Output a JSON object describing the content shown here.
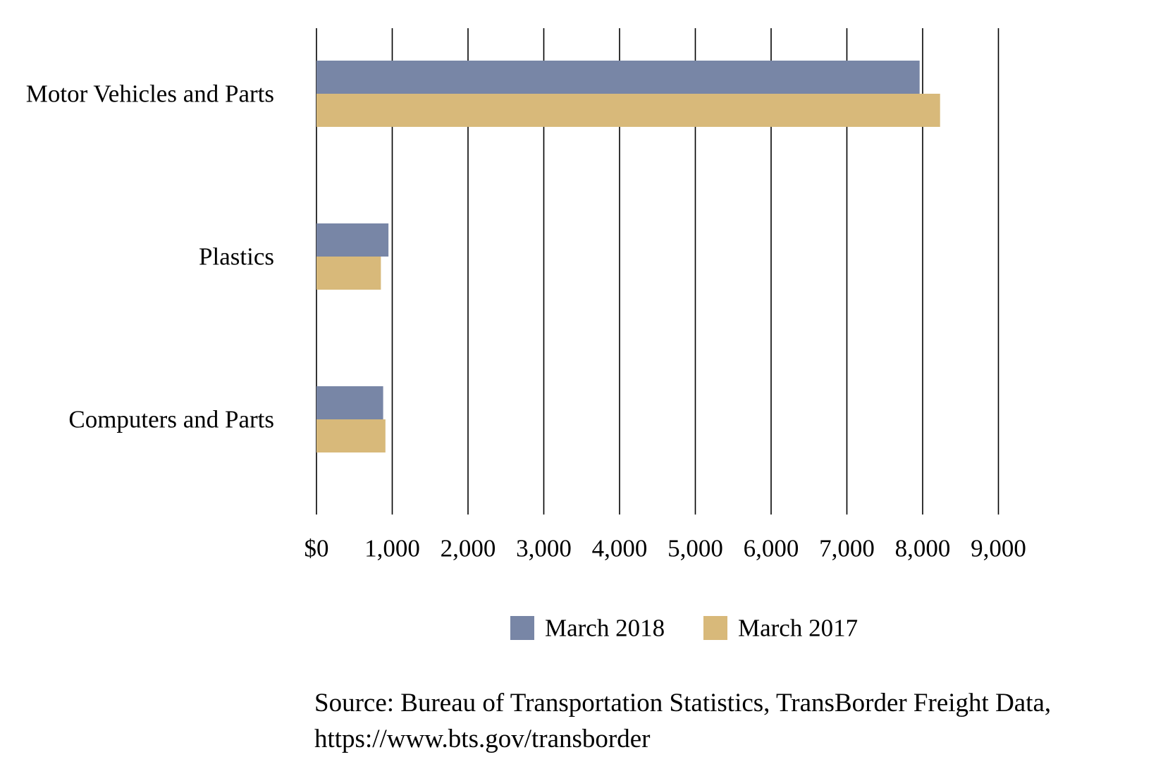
{
  "chart_data": {
    "type": "bar",
    "orientation": "horizontal",
    "categories": [
      "Motor Vehicles and Parts",
      "Plastics",
      "Computers and Parts"
    ],
    "series": [
      {
        "name": "March 2018",
        "color": "#7886a6",
        "values": [
          7960,
          950,
          880
        ]
      },
      {
        "name": "March 2017",
        "color": "#d8b97a",
        "values": [
          8230,
          850,
          910
        ]
      }
    ],
    "xlim": [
      0,
      9000
    ],
    "x_ticks": [
      0,
      1000,
      2000,
      3000,
      4000,
      5000,
      6000,
      7000,
      8000,
      9000
    ],
    "x_tick_labels": [
      "$0",
      "1,000",
      "2,000",
      "3,000",
      "4,000",
      "5,000",
      "6,000",
      "7,000",
      "8,000",
      "9,000"
    ],
    "grid": "vertical",
    "legend_position": "bottom"
  },
  "source": {
    "line1": "Source: Bureau of Transportation Statistics, TransBorder Freight Data,",
    "line2": "https://www.bts.gov/transborder"
  }
}
